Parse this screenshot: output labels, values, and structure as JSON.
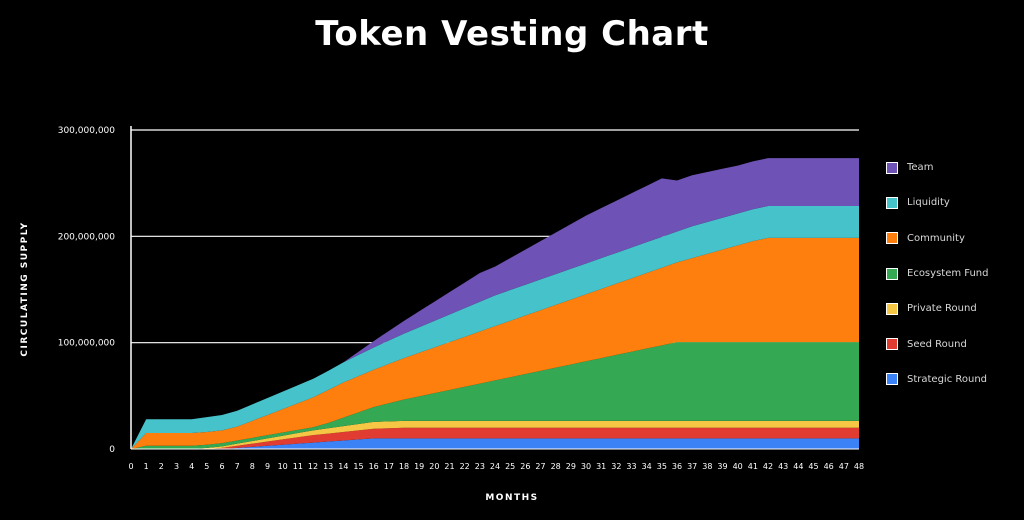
{
  "title": "Token Vesting Chart",
  "chart_data": {
    "type": "area",
    "stacked": true,
    "xlabel": "MONTHS",
    "ylabel": "CIRCULATING SUPPLY",
    "ylim": [
      0,
      300000000
    ],
    "yticks": [
      0,
      100000000,
      200000000,
      300000000
    ],
    "ytick_labels": [
      "0",
      "100,000,000",
      "200,000,000",
      "300,000,000"
    ],
    "x": [
      0,
      1,
      2,
      3,
      4,
      5,
      6,
      7,
      8,
      9,
      10,
      11,
      12,
      13,
      14,
      15,
      16,
      17,
      18,
      19,
      20,
      21,
      22,
      23,
      24,
      25,
      26,
      27,
      28,
      29,
      30,
      31,
      32,
      33,
      34,
      35,
      36,
      37,
      38,
      39,
      40,
      41,
      42,
      43,
      44,
      45,
      46,
      47,
      48
    ],
    "legend_position": "right",
    "series": [
      {
        "name": "Strategic Round",
        "color": "#3b82f6",
        "values": [
          0,
          0,
          0,
          0,
          0,
          0,
          0,
          1000000,
          2000000,
          3000000,
          4000000,
          5000000,
          6000000,
          7000000,
          8000000,
          9000000,
          10000000,
          10000000,
          10000000,
          10000000,
          10000000,
          10000000,
          10000000,
          10000000,
          10000000,
          10000000,
          10000000,
          10000000,
          10000000,
          10000000,
          10000000,
          10000000,
          10000000,
          10000000,
          10000000,
          10000000,
          10000000,
          10000000,
          10000000,
          10000000,
          10000000,
          10000000,
          10000000,
          10000000,
          10000000,
          10000000,
          10000000,
          10000000,
          10000000
        ]
      },
      {
        "name": "Seed Round",
        "color": "#e03c31",
        "values": [
          0,
          0,
          0,
          0,
          0,
          0,
          1000000,
          2000000,
          3000000,
          4000000,
          5000000,
          6000000,
          7000000,
          7500000,
          8000000,
          8500000,
          9000000,
          9500000,
          10000000,
          10000000,
          10000000,
          10000000,
          10000000,
          10000000,
          10000000,
          10000000,
          10000000,
          10000000,
          10000000,
          10000000,
          10000000,
          10000000,
          10000000,
          10000000,
          10000000,
          10000000,
          10000000,
          10000000,
          10000000,
          10000000,
          10000000,
          10000000,
          10000000,
          10000000,
          10000000,
          10000000,
          10000000,
          10000000,
          10000000
        ]
      },
      {
        "name": "Private Round",
        "color": "#f6c744",
        "values": [
          0,
          0,
          0,
          0,
          0,
          1000000,
          1500000,
          2000000,
          2500000,
          3000000,
          3500000,
          4000000,
          4500000,
          5000000,
          5500000,
          6000000,
          6500000,
          6500000,
          6500000,
          6500000,
          6500000,
          6500000,
          6500000,
          6500000,
          6500000,
          6500000,
          6500000,
          6500000,
          6500000,
          6500000,
          6500000,
          6500000,
          6500000,
          6500000,
          6500000,
          6500000,
          6500000,
          6500000,
          6500000,
          6500000,
          6500000,
          6500000,
          6500000,
          6500000,
          6500000,
          6500000,
          6500000,
          6500000,
          6500000
        ]
      },
      {
        "name": "Ecosystem Fund",
        "color": "#34a853",
        "values": [
          0,
          3000000,
          3000000,
          3000000,
          3000000,
          3000000,
          3000000,
          3000000,
          3000000,
          3000000,
          3000000,
          3000000,
          3000000,
          5000000,
          8000000,
          11000000,
          14000000,
          17000000,
          20000000,
          23000000,
          26000000,
          29000000,
          32000000,
          35000000,
          38000000,
          41000000,
          44000000,
          47000000,
          50000000,
          53000000,
          56000000,
          59000000,
          62000000,
          65000000,
          68000000,
          71000000,
          74000000,
          74000000,
          74000000,
          74000000,
          74000000,
          74000000,
          74000000,
          74000000,
          74000000,
          74000000,
          74000000,
          74000000,
          74000000
        ]
      },
      {
        "name": "Community",
        "color": "#ff7f0e",
        "values": [
          0,
          12000000,
          12000000,
          12000000,
          12000000,
          12000000,
          12000000,
          13000000,
          16000000,
          19000000,
          22000000,
          25000000,
          28000000,
          31000000,
          33000000,
          34000000,
          35000000,
          37000000,
          39000000,
          41000000,
          43000000,
          45000000,
          47000000,
          49000000,
          51000000,
          53000000,
          55000000,
          57000000,
          59000000,
          61000000,
          63000000,
          65000000,
          67000000,
          69000000,
          71000000,
          73000000,
          75000000,
          79000000,
          83000000,
          87000000,
          91000000,
          95000000,
          98000000,
          98000000,
          98000000,
          98000000,
          98000000,
          98000000,
          98000000
        ]
      },
      {
        "name": "Liquidity",
        "color": "#46c2cb",
        "values": [
          0,
          13000000,
          13000000,
          13000000,
          13000000,
          14000000,
          14500000,
          15000000,
          15500000,
          16000000,
          16500000,
          17000000,
          17500000,
          18000000,
          19000000,
          20000000,
          21000000,
          22000000,
          23000000,
          24000000,
          25000000,
          26000000,
          27000000,
          28000000,
          29000000,
          29000000,
          29000000,
          29000000,
          29000000,
          29000000,
          29000000,
          29000000,
          29000000,
          29000000,
          29000000,
          29000000,
          29000000,
          30000000,
          30000000,
          30000000,
          30000000,
          30000000,
          30000000,
          30000000,
          30000000,
          30000000,
          30000000,
          30000000,
          30000000
        ]
      },
      {
        "name": "Team",
        "color": "#6f52b5",
        "values": [
          0,
          0,
          0,
          0,
          0,
          0,
          0,
          0,
          0,
          0,
          0,
          0,
          0,
          0,
          0,
          3000000,
          6000000,
          9000000,
          12000000,
          15000000,
          18000000,
          21000000,
          24000000,
          27000000,
          27000000,
          30000000,
          33000000,
          36000000,
          39000000,
          42000000,
          45000000,
          47000000,
          49000000,
          51000000,
          53000000,
          55000000,
          48000000,
          48000000,
          47000000,
          46000000,
          45000000,
          45000000,
          45000000,
          45000000,
          45000000,
          45000000,
          45000000,
          45000000,
          45000000
        ]
      }
    ]
  }
}
